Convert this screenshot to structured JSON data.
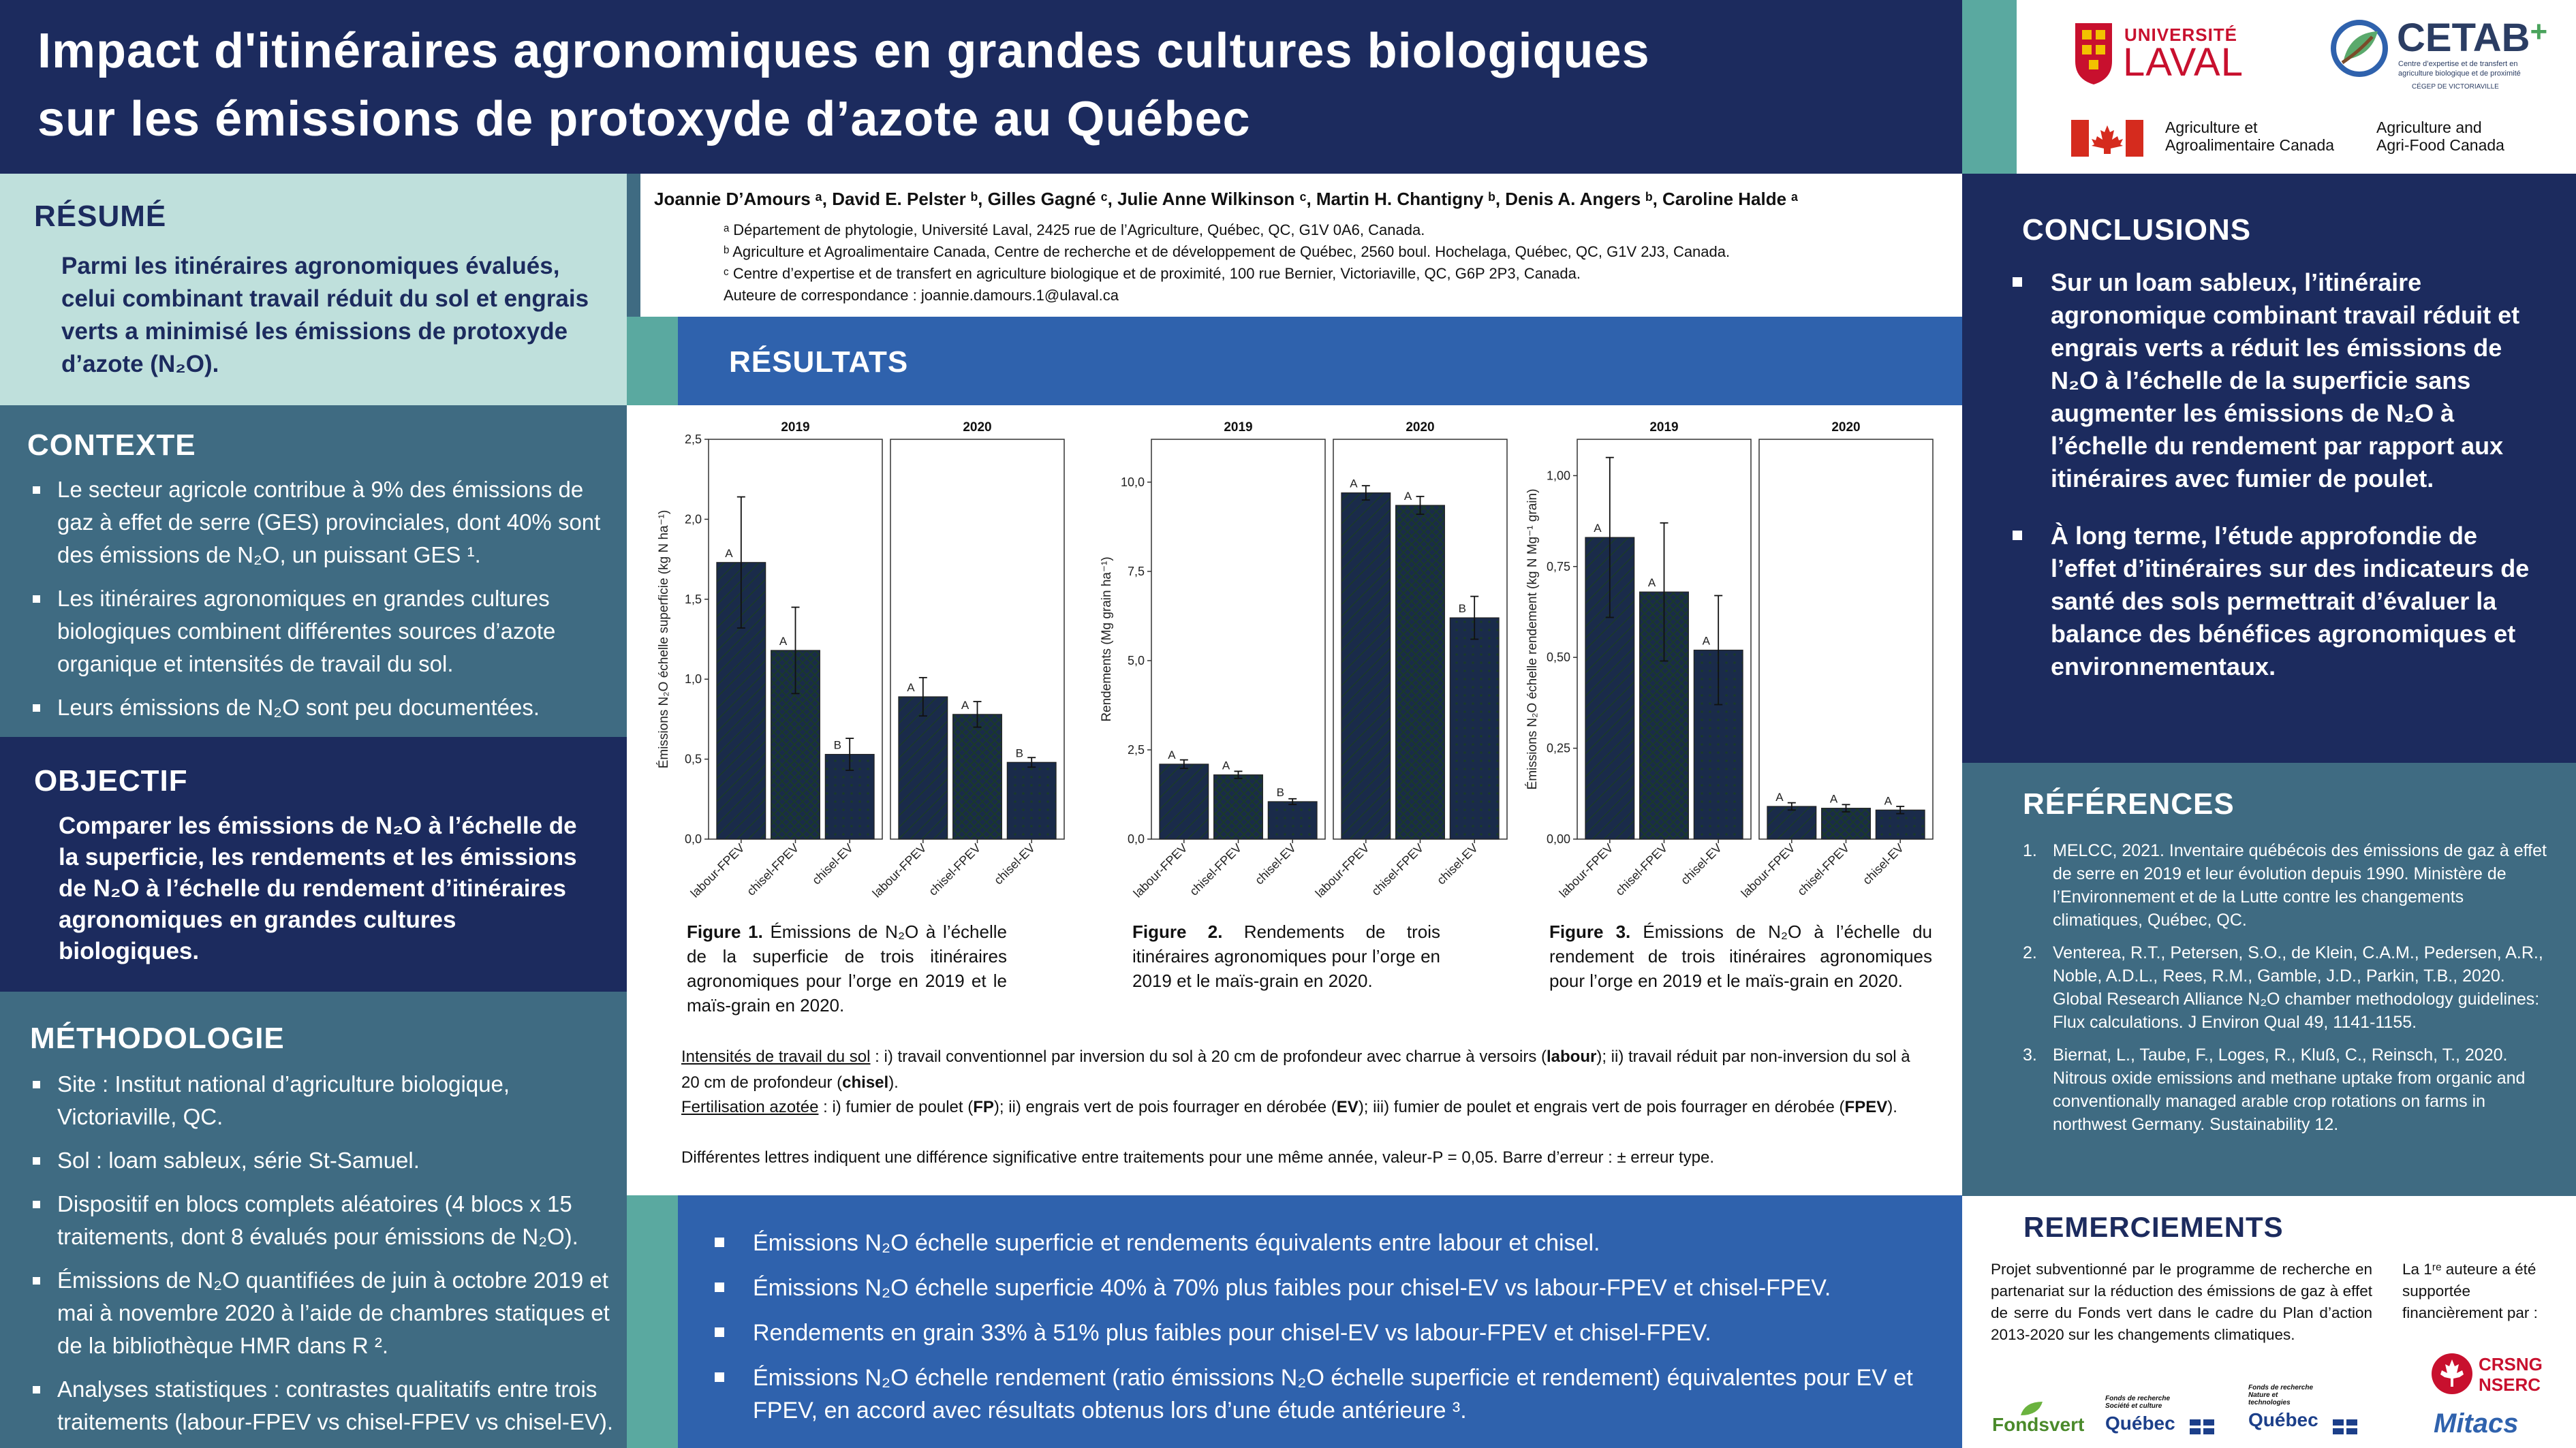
{
  "title": {
    "line1": "Impact d'itinéraires agronomiques en grandes cultures biologiques",
    "line2": "sur les émissions de protoxyde d’azote au Québec"
  },
  "logos": {
    "laval": {
      "line1": "UNIVERSITÉ",
      "line2": "LAVAL"
    },
    "cetab": {
      "name": "CETAB",
      "plus": "+",
      "sub1": "Centre d’expertise et de transfert en",
      "sub2": "agriculture biologique et de proximité",
      "cegep": "CÉGEP DE VICTORIAVILLE"
    },
    "aac_fr": {
      "line1": "Agriculture et",
      "line2": "Agroalimentaire Canada"
    },
    "aac_en": {
      "line1": "Agriculture and",
      "line2": "Agri-Food Canada"
    }
  },
  "authors": {
    "line": "Joannie D’Amours ᵃ, David E. Pelster ᵇ, Gilles Gagné ᶜ,  Julie Anne Wilkinson ᶜ, Martin H. Chantigny ᵇ, Denis A. Angers ᵇ, Caroline Halde ᵃ",
    "aff_a": "ᵃ Département de phytologie, Université Laval, 2425 rue de l’Agriculture, Québec, QC, G1V 0A6, Canada.",
    "aff_b": "ᵇ Agriculture et Agroalimentaire Canada, Centre de recherche et de développement de Québec, 2560 boul. Hochelaga, Québec, QC, G1V 2J3, Canada.",
    "aff_c": "ᶜ Centre d’expertise et de transfert en agriculture biologique et de proximité, 100 rue Bernier, Victoriaville, QC, G6P 2P3, Canada.",
    "contact": "Auteure de correspondance : joannie.damours.1@ulaval.ca"
  },
  "resume": {
    "title": "RÉSUMÉ",
    "text": "Parmi les itinéraires agronomiques évalués, celui combinant travail réduit du sol et engrais verts a minimisé les émissions de protoxyde d’azote (N₂O)."
  },
  "contexte": {
    "title": "CONTEXTE",
    "items": [
      "Le secteur agricole contribue à 9% des émissions de gaz à effet de serre (GES) provinciales, dont 40% sont des émissions de N₂O, un puissant GES ¹.",
      "Les itinéraires agronomiques en grandes cultures biologiques combinent différentes sources d’azote organique et intensités de travail du sol.",
      "Leurs émissions de N₂O sont peu documentées."
    ]
  },
  "objectif": {
    "title": "OBJECTIF",
    "text": "Comparer les émissions de N₂O à l’échelle de la superficie, les rendements et les émissions de N₂O à l’échelle du rendement d’itinéraires agronomiques en grandes cultures biologiques."
  },
  "methodologie": {
    "title": "MÉTHODOLOGIE",
    "items": [
      "Site : Institut national d’agriculture biologique, Victoriaville, QC.",
      "Sol : loam sableux, série St-Samuel.",
      "Dispositif en blocs complets aléatoires (4 blocs x 15 traitements, dont 8 évalués pour émissions de N₂O).",
      "Émissions de N₂O quantifiées de juin à octobre 2019 et mai à novembre 2020 à l’aide de chambres statiques et de la bibliothèque HMR dans R ².",
      "Analyses statistiques : contrastes qualitatifs entre trois traitements (labour-FPEV vs chisel-FPEV vs chisel-EV)."
    ]
  },
  "resultats": {
    "title": "RÉSULTATS",
    "bullets": [
      "Émissions N₂O échelle superficie et rendements équivalents entre labour et chisel.",
      "Émissions N₂O échelle superficie 40% à 70% plus faibles pour chisel-EV vs labour-FPEV et chisel-FPEV.",
      "Rendements en grain 33% à 51% plus faibles pour chisel-EV vs labour-FPEV et chisel-FPEV.",
      "Émissions N₂O échelle rendement (ratio émissions N₂O échelle superficie et rendement) équivalentes pour EV et FPEV, en accord avec résultats obtenus lors d’une étude antérieure ³."
    ],
    "notes": {
      "intensites_label": "Intensités de travail du sol",
      "intensites_a": " : i) travail conventionnel par inversion du sol à 20 cm de profondeur avec charrue à versoirs (",
      "intensites_b": "labour",
      "intensites_c": "); ii) travail réduit par non-inversion du sol à 20 cm de profondeur (",
      "intensites_d": "chisel",
      "intensites_e": ").",
      "fert_label": "Fertilisation azotée",
      "fert_a": " : i) fumier de poulet (",
      "fert_b": "FP",
      "fert_c": "); ii) engrais vert de pois fourrager en dérobée (",
      "fert_d": "EV",
      "fert_e": "); iii) fumier de poulet et engrais vert de pois fourrager en dérobée (",
      "fert_f": "FPEV",
      "fert_g": ").",
      "letters": "Différentes lettres indiquent une différence significative entre traitements pour une même année, valeur-P = 0,05. Barre d’erreur : ± erreur type."
    }
  },
  "figures": [
    {
      "label": "Figure 1.",
      "caption": " Émissions de N₂O à l’échelle de la superficie de trois itinéraires agronomiques pour l’orge en 2019 et le maïs-grain en 2020."
    },
    {
      "label": "Figure 2.",
      "caption": " Rendements de trois itinéraires agronomiques pour l’orge en 2019 et le maïs-grain en 2020."
    },
    {
      "label": "Figure 3.",
      "caption": " Émissions de N₂O à l’échelle du rendement de trois itinéraires agronomiques pour l’orge en 2019 et le maïs-grain en 2020."
    }
  ],
  "colors": {
    "green": "#3e9a6f",
    "gold": "#e0ad2c"
  },
  "chart_data": [
    {
      "type": "bar",
      "ylabel": "Émissions N₂O échelle superficie (kg N ha⁻¹)",
      "ylim": [
        0,
        2.5
      ],
      "yticks": [
        "0,0",
        "0,5",
        "1,0",
        "1,5",
        "2,0",
        "2,5"
      ],
      "ytick_values": [
        0,
        0.5,
        1.0,
        1.5,
        2.0,
        2.5
      ],
      "categories": [
        "labour-FPEV",
        "chisel-FPEV",
        "chisel-EV"
      ],
      "panels": [
        {
          "name": "2019",
          "values": [
            1.73,
            1.18,
            0.53
          ],
          "errors": [
            0.41,
            0.27,
            0.1
          ],
          "letters": [
            "A",
            "A",
            "B"
          ]
        },
        {
          "name": "2020",
          "values": [
            0.89,
            0.78,
            0.48
          ],
          "errors": [
            0.12,
            0.08,
            0.03
          ],
          "letters": [
            "A",
            "A",
            "B"
          ]
        }
      ]
    },
    {
      "type": "bar",
      "ylabel": "Rendements (Mg grain ha⁻¹)",
      "ylim": [
        0,
        11.2
      ],
      "yticks": [
        "0,0",
        "2,5",
        "5,0",
        "7,5",
        "10,0"
      ],
      "ytick_values": [
        0,
        2.5,
        5.0,
        7.5,
        10.0
      ],
      "categories": [
        "labour-FPEV",
        "chisel-FPEV",
        "chisel-EV"
      ],
      "panels": [
        {
          "name": "2019",
          "values": [
            2.1,
            1.8,
            1.05
          ],
          "errors": [
            0.12,
            0.1,
            0.08
          ],
          "letters": [
            "A",
            "A",
            "B"
          ]
        },
        {
          "name": "2020",
          "values": [
            9.7,
            9.35,
            6.2
          ],
          "errors": [
            0.2,
            0.25,
            0.6
          ],
          "letters": [
            "A",
            "A",
            "B"
          ]
        }
      ]
    },
    {
      "type": "bar",
      "ylabel": "Émissions N₂O échelle rendement (kg N Mg⁻¹ grain)",
      "ylim": [
        0,
        1.1
      ],
      "yticks": [
        "0,00",
        "0,25",
        "0,50",
        "0,75",
        "1,00"
      ],
      "ytick_values": [
        0,
        0.25,
        0.5,
        0.75,
        1.0
      ],
      "categories": [
        "labour-FPEV",
        "chisel-FPEV",
        "chisel-EV"
      ],
      "panels": [
        {
          "name": "2019",
          "values": [
            0.83,
            0.68,
            0.52
          ],
          "errors": [
            0.22,
            0.19,
            0.15
          ],
          "letters": [
            "A",
            "A",
            "A"
          ]
        },
        {
          "name": "2020",
          "values": [
            0.09,
            0.085,
            0.08
          ],
          "errors": [
            0.01,
            0.01,
            0.01
          ],
          "letters": [
            "A",
            "A",
            "A"
          ]
        }
      ]
    }
  ],
  "conclusions": {
    "title": "CONCLUSIONS",
    "items": [
      "Sur un loam sableux, l’itinéraire agronomique combinant travail réduit et engrais verts a réduit les émissions de N₂O à l’échelle de la superficie sans augmenter les émissions de N₂O à l’échelle du rendement par rapport aux itinéraires avec fumier de poulet.",
      "À long terme, l’étude approfondie de l’effet d’itinéraires sur des indicateurs de santé des sols permettrait d’évaluer la balance des bénéfices agronomiques et environnementaux."
    ]
  },
  "references": {
    "title": "RÉFÉRENCES",
    "items": [
      {
        "n": "1.",
        "text": "MELCC, 2021. Inventaire québécois des émissions de gaz à effet de serre en 2019 et leur évolution depuis 1990. Ministère de l’Environnement et de la Lutte contre les changements climatiques, Québec, QC."
      },
      {
        "n": "2.",
        "text": "Venterea, R.T., Petersen, S.O., de Klein, C.A.M., Pedersen, A.R., Noble, A.D.L., Rees, R.M., Gamble, J.D., Parkin, T.B., 2020. Global Research Alliance N₂O chamber methodology guidelines: Flux calculations. J Environ Qual 49, 1141-1155."
      },
      {
        "n": "3.",
        "text": "Biernat, L., Taube, F., Loges, R., Kluß, C., Reinsch, T., 2020. Nitrous oxide emissions and methane uptake from organic and conventionally managed arable crop rotations on farms in northwest Germany. Sustainability 12."
      }
    ]
  },
  "remerciements": {
    "title": "REMERCIEMENTS",
    "text": "Projet subventionné par le programme de recherche en partenariat sur la réduction des émissions de gaz à effet de serre du Fonds vert dans le cadre du Plan d’action 2013-2020 sur les changements climatiques.",
    "side": "La 1ʳᵉ auteure a été supportée financièrement par :",
    "logo_fonds": "Fondsvert",
    "logo_frq1_a": "Fonds de recherche",
    "logo_frq1_b": "Société et culture",
    "logo_frq1_c": "Québec",
    "logo_frq2_a": "Fonds de recherche",
    "logo_frq2_b": "Nature et technologies",
    "logo_frq2_c": "Québec",
    "logo_crsng_a": "CRSNG",
    "logo_crsng_b": "NSERC",
    "logo_mitacs": "Mitacs"
  }
}
